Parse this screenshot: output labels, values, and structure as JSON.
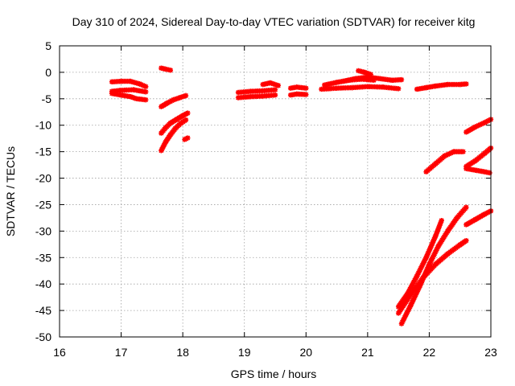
{
  "chart_data": {
    "type": "scatter",
    "title": "Day 310 of 2024, Sidereal Day-to-day VTEC variation (SDTVAR) for receiver kitg",
    "xlabel": "GPS time / hours",
    "ylabel": "SDTVAR / TECUs",
    "xlim": [
      16,
      23
    ],
    "ylim": [
      -50,
      5
    ],
    "xticks": [
      "16",
      "17",
      "18",
      "19",
      "20",
      "21",
      "22",
      "23"
    ],
    "yticks": [
      "5",
      "0",
      "-5",
      "-10",
      "-15",
      "-20",
      "-25",
      "-30",
      "-35",
      "-40",
      "-45",
      "-50"
    ],
    "grid": true,
    "legend": "none",
    "marker": "plus-x",
    "series_color": "#ff0000",
    "segments": [
      {
        "x": [
          16.85,
          17.0,
          17.15,
          17.3,
          17.4
        ],
        "y": [
          -1.8,
          -1.7,
          -1.7,
          -2.2,
          -2.7
        ]
      },
      {
        "x": [
          16.85,
          17.0,
          17.15,
          17.25,
          17.4
        ],
        "y": [
          -4.0,
          -4.3,
          -4.6,
          -5.0,
          -5.2
        ]
      },
      {
        "x": [
          16.85,
          17.0,
          17.2,
          17.4
        ],
        "y": [
          -3.6,
          -3.4,
          -3.3,
          -3.7
        ]
      },
      {
        "x": [
          17.65,
          17.72,
          17.8
        ],
        "y": [
          0.8,
          0.6,
          0.4
        ]
      },
      {
        "x": [
          17.65,
          17.75,
          17.85,
          17.95,
          18.05
        ],
        "y": [
          -6.5,
          -5.8,
          -5.2,
          -4.8,
          -4.4
        ]
      },
      {
        "x": [
          17.65,
          17.72,
          17.8,
          17.9,
          18.0,
          18.08
        ],
        "y": [
          -11.5,
          -10.5,
          -9.6,
          -8.9,
          -8.2,
          -7.7
        ]
      },
      {
        "x": [
          17.65,
          17.72,
          17.8,
          17.88,
          17.96,
          18.05
        ],
        "y": [
          -14.8,
          -13.2,
          -11.8,
          -10.6,
          -9.7,
          -9.0
        ]
      },
      {
        "x": [
          18.03,
          18.08
        ],
        "y": [
          -12.7,
          -12.4
        ]
      },
      {
        "x": [
          18.9,
          19.1,
          19.3,
          19.5
        ],
        "y": [
          -3.8,
          -3.6,
          -3.5,
          -3.3
        ]
      },
      {
        "x": [
          18.9,
          19.1,
          19.3,
          19.5
        ],
        "y": [
          -4.8,
          -4.6,
          -4.5,
          -4.3
        ]
      },
      {
        "x": [
          19.3,
          19.42,
          19.55
        ],
        "y": [
          -2.3,
          -2.0,
          -2.5
        ]
      },
      {
        "x": [
          19.75,
          19.85,
          20.0
        ],
        "y": [
          -3.0,
          -2.8,
          -3.0
        ]
      },
      {
        "x": [
          19.75,
          19.85,
          20.0
        ],
        "y": [
          -4.3,
          -4.1,
          -4.2
        ]
      },
      {
        "x": [
          20.25,
          20.5,
          20.75,
          21.0,
          21.25,
          21.5
        ],
        "y": [
          -3.2,
          -3.0,
          -2.9,
          -2.7,
          -2.8,
          -3.1
        ]
      },
      {
        "x": [
          20.3,
          20.5,
          20.7,
          20.9,
          21.1
        ],
        "y": [
          -2.4,
          -1.9,
          -1.5,
          -1.3,
          -1.5
        ]
      },
      {
        "x": [
          20.6,
          20.8,
          21.0,
          21.2,
          21.4,
          21.55
        ],
        "y": [
          -1.7,
          -1.2,
          -0.9,
          -1.2,
          -1.5,
          -1.4
        ]
      },
      {
        "x": [
          20.85,
          20.95,
          21.05
        ],
        "y": [
          0.3,
          0.0,
          -0.4
        ]
      },
      {
        "x": [
          21.8,
          21.95,
          22.1,
          22.3,
          22.5,
          22.6
        ],
        "y": [
          -3.2,
          -2.9,
          -2.6,
          -2.3,
          -2.3,
          -2.2
        ]
      },
      {
        "x": [
          21.95,
          22.1,
          22.25,
          22.4,
          22.55
        ],
        "y": [
          -18.8,
          -17.3,
          -15.8,
          -15.0,
          -15.0
        ]
      },
      {
        "x": [
          22.6,
          22.75,
          22.9,
          23.0
        ],
        "y": [
          -11.3,
          -10.3,
          -9.5,
          -8.9
        ]
      },
      {
        "x": [
          22.6,
          22.75,
          22.9,
          23.0
        ],
        "y": [
          -17.8,
          -16.7,
          -15.3,
          -14.3
        ]
      },
      {
        "x": [
          22.6,
          22.75,
          22.9,
          22.98
        ],
        "y": [
          -18.2,
          -18.5,
          -18.8,
          -19.0
        ]
      },
      {
        "x": [
          21.5,
          21.65,
          21.8,
          21.95,
          22.1,
          22.2
        ],
        "y": [
          -44.3,
          -41.8,
          -38.5,
          -35.0,
          -31.0,
          -28.0
        ]
      },
      {
        "x": [
          21.55,
          21.7,
          21.85,
          22.0,
          22.15,
          22.3,
          22.45,
          22.6
        ],
        "y": [
          -47.5,
          -44.0,
          -40.3,
          -36.3,
          -32.8,
          -30.0,
          -27.5,
          -25.5
        ]
      },
      {
        "x": [
          21.5,
          21.7,
          21.9,
          22.1,
          22.3,
          22.5,
          22.6
        ],
        "y": [
          -45.5,
          -42.0,
          -38.8,
          -36.3,
          -34.3,
          -32.6,
          -31.8
        ]
      },
      {
        "x": [
          22.6,
          22.75,
          22.9,
          23.0
        ],
        "y": [
          -28.8,
          -27.8,
          -26.8,
          -26.2
        ]
      }
    ]
  }
}
